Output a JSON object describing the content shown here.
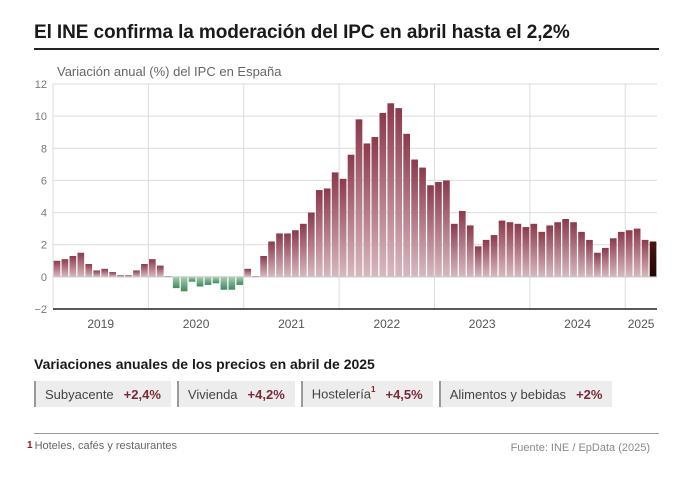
{
  "header": {
    "title": "El INE confirma la moderación del IPC en abril hasta el 2,2%"
  },
  "chart_data": {
    "type": "bar",
    "title": "Variación anual (%) del IPC en España",
    "xlabel": "",
    "ylabel": "",
    "ylim": [
      -2,
      12
    ],
    "yticks": [
      12,
      10,
      8,
      6,
      4,
      2,
      0,
      -2
    ],
    "ytick_labels": [
      "12",
      "10",
      "8",
      "6",
      "4",
      "2",
      "0",
      "−2"
    ],
    "year_labels": [
      {
        "label": "2019",
        "center_index": 5.5,
        "boundary_after": 11
      },
      {
        "label": "2020",
        "center_index": 17.5,
        "boundary_after": 23
      },
      {
        "label": "2021",
        "center_index": 29.5,
        "boundary_after": 35
      },
      {
        "label": "2022",
        "center_index": 41.5,
        "boundary_after": 47
      },
      {
        "label": "2023",
        "center_index": 53.5,
        "boundary_after": 59
      },
      {
        "label": "2024",
        "center_index": 65.5,
        "boundary_after": 71
      },
      {
        "label": "2025",
        "center_index": 73.5
      }
    ],
    "series": [
      {
        "name": "IPC",
        "values": [
          1.0,
          1.1,
          1.3,
          1.5,
          0.8,
          0.4,
          0.5,
          0.3,
          0.1,
          0.1,
          0.4,
          0.8,
          1.1,
          0.7,
          0.0,
          -0.7,
          -0.9,
          -0.3,
          -0.6,
          -0.5,
          -0.4,
          -0.8,
          -0.8,
          -0.5,
          0.5,
          0.0,
          1.3,
          2.2,
          2.7,
          2.7,
          2.9,
          3.3,
          4.0,
          5.4,
          5.5,
          6.5,
          6.1,
          7.6,
          9.8,
          8.3,
          8.7,
          10.2,
          10.8,
          10.5,
          8.9,
          7.3,
          6.8,
          5.7,
          5.9,
          6.0,
          3.3,
          4.1,
          3.2,
          1.9,
          2.3,
          2.6,
          3.5,
          3.4,
          3.3,
          3.1,
          3.3,
          2.8,
          3.2,
          3.4,
          3.6,
          3.4,
          2.8,
          2.3,
          1.5,
          1.8,
          2.4,
          2.8,
          2.9,
          3.0,
          2.3,
          2.2
        ]
      }
    ],
    "colors": {
      "positive": "#8b3a4b",
      "positive_light": "#d7b3bc",
      "negative": "#3f8a5a",
      "negative_light": "#a9cfb4",
      "highlight": "#4d1410",
      "highlight_light": "#2a0a06"
    }
  },
  "breakdown": {
    "title": "Variaciones anuales de los precios en abril de 2025",
    "items": [
      {
        "label": "Subyacente",
        "value": "+2,4%",
        "sup": ""
      },
      {
        "label": "Vivienda",
        "value": "+4,2%",
        "sup": ""
      },
      {
        "label": "Hostelería",
        "value": "+4,5%",
        "sup": "1"
      },
      {
        "label": "Alimentos y bebidas",
        "value": "+2%",
        "sup": ""
      }
    ]
  },
  "footer": {
    "note_mark": "1",
    "note": "Hoteles, cafés y restaurantes",
    "source": "Fuente: INE / EpData (2025)"
  }
}
